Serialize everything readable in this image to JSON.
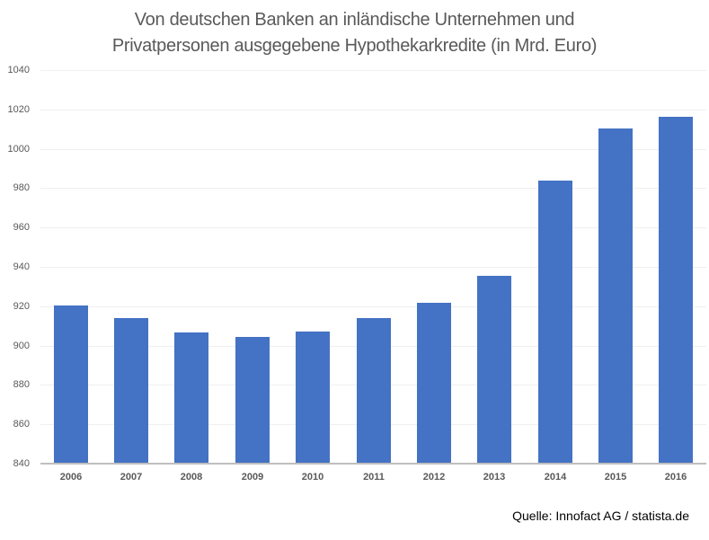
{
  "chart_data": {
    "type": "bar",
    "title": "Von deutschen Banken an inländische Unternehmen und Privatpersonen ausgegebene Hypothekarkredite (in Mrd. Euro)",
    "title_lines": [
      "Von deutschen Banken an inländische Unternehmen und",
      "Privatpersonen ausgegebene Hypothekarkredite (in Mrd. Euro)"
    ],
    "xlabel": "",
    "ylabel": "",
    "categories": [
      "2006",
      "2007",
      "2008",
      "2009",
      "2010",
      "2011",
      "2012",
      "2013",
      "2014",
      "2015",
      "2016"
    ],
    "values": [
      920.5,
      914.1,
      906.8,
      904.5,
      907.3,
      913.8,
      921.9,
      935.3,
      983.7,
      1010.2,
      1016.2
    ],
    "ylim": [
      840,
      1040
    ],
    "yticks": [
      840,
      860,
      880,
      900,
      920,
      940,
      960,
      980,
      1000,
      1020,
      1040
    ],
    "grid": true,
    "legend": null,
    "bar_color": "#4472c4",
    "source": "Quelle: Innofact AG / statista.de"
  }
}
